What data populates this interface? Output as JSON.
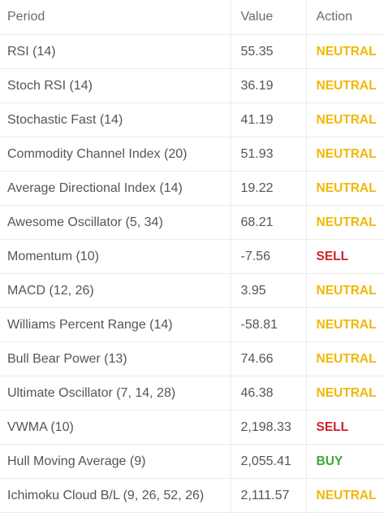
{
  "header": {
    "period": "Period",
    "value": "Value",
    "action": "Action"
  },
  "colors": {
    "neutral": "#f2b705",
    "sell": "#d0202b",
    "buy": "#3aa836"
  },
  "rows": [
    {
      "period": "RSI (14)",
      "value": "55.35",
      "action": "NEUTRAL",
      "status": "neutral"
    },
    {
      "period": "Stoch RSI (14)",
      "value": "36.19",
      "action": "NEUTRAL",
      "status": "neutral"
    },
    {
      "period": "Stochastic Fast (14)",
      "value": "41.19",
      "action": "NEUTRAL",
      "status": "neutral"
    },
    {
      "period": "Commodity Channel Index (20)",
      "value": "51.93",
      "action": "NEUTRAL",
      "status": "neutral"
    },
    {
      "period": "Average Directional Index (14)",
      "value": "19.22",
      "action": "NEUTRAL",
      "status": "neutral"
    },
    {
      "period": "Awesome Oscillator (5, 34)",
      "value": "68.21",
      "action": "NEUTRAL",
      "status": "neutral"
    },
    {
      "period": "Momentum (10)",
      "value": "-7.56",
      "action": "SELL",
      "status": "sell"
    },
    {
      "period": "MACD (12, 26)",
      "value": "3.95",
      "action": "NEUTRAL",
      "status": "neutral"
    },
    {
      "period": "Williams Percent Range (14)",
      "value": "-58.81",
      "action": "NEUTRAL",
      "status": "neutral"
    },
    {
      "period": "Bull Bear Power (13)",
      "value": "74.66",
      "action": "NEUTRAL",
      "status": "neutral"
    },
    {
      "period": "Ultimate Oscillator (7, 14, 28)",
      "value": "46.38",
      "action": "NEUTRAL",
      "status": "neutral"
    },
    {
      "period": "VWMA (10)",
      "value": "2,198.33",
      "action": "SELL",
      "status": "sell"
    },
    {
      "period": "Hull Moving Average (9)",
      "value": "2,055.41",
      "action": "BUY",
      "status": "buy"
    },
    {
      "period": "Ichimoku Cloud B/L (9, 26, 52, 26)",
      "value": "2,111.57",
      "action": "NEUTRAL",
      "status": "neutral"
    }
  ]
}
